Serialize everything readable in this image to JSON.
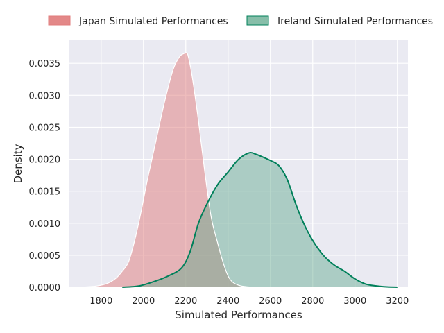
{
  "chart_data": {
    "type": "area",
    "title": "",
    "xlabel": "Simulated Performances",
    "ylabel": "Density",
    "xlim": [
      1650,
      3250
    ],
    "ylim": [
      0,
      0.00386
    ],
    "grid": true,
    "legend_position": "top",
    "x_ticks": [
      1800,
      2000,
      2200,
      2400,
      2600,
      2800,
      3000,
      3200
    ],
    "x_tick_labels": [
      "1800",
      "2000",
      "2200",
      "2400",
      "2600",
      "2800",
      "3000",
      "3200"
    ],
    "y_ticks": [
      0,
      0.0005,
      0.001,
      0.0015,
      0.002,
      0.0025,
      0.003,
      0.0035
    ],
    "y_tick_labels": [
      "0.0000",
      "0.0005",
      "0.0010",
      "0.0015",
      "0.0020",
      "0.0025",
      "0.0030",
      "0.0035"
    ],
    "series": [
      {
        "name": "Japan Simulated Performances",
        "fill_color": "#e07b7b",
        "line_color": "#ffffff",
        "x": [
          1700,
          1780,
          1830,
          1870,
          1900,
          1930,
          1960,
          1990,
          2020,
          2060,
          2100,
          2140,
          2170,
          2190,
          2200,
          2210,
          2230,
          2260,
          2290,
          2320,
          2350,
          2380,
          2410,
          2450,
          2500,
          2550
        ],
        "y": [
          0,
          2e-05,
          6e-05,
          0.00014,
          0.00025,
          0.0004,
          0.00075,
          0.0012,
          0.0017,
          0.0023,
          0.0029,
          0.0034,
          0.0036,
          0.00365,
          0.00366,
          0.00363,
          0.0033,
          0.0026,
          0.0018,
          0.0011,
          0.0007,
          0.00035,
          0.00012,
          3e-05,
          5e-06,
          0
        ]
      },
      {
        "name": "Ireland Simulated Performances",
        "fill_color": "#5fa88c",
        "line_color": "#00805a",
        "x": [
          1900,
          1980,
          2060,
          2120,
          2180,
          2220,
          2260,
          2300,
          2350,
          2400,
          2450,
          2500,
          2530,
          2560,
          2600,
          2640,
          2680,
          2720,
          2760,
          2800,
          2850,
          2900,
          2950,
          3000,
          3050,
          3100,
          3150,
          3200
        ],
        "y": [
          0,
          2e-05,
          0.0001,
          0.00018,
          0.0003,
          0.00055,
          0.001,
          0.0013,
          0.0016,
          0.0018,
          0.002,
          0.0021,
          0.00208,
          0.00204,
          0.00198,
          0.0019,
          0.00168,
          0.0013,
          0.00098,
          0.00073,
          0.0005,
          0.00035,
          0.00025,
          0.00013,
          5e-05,
          2e-05,
          5e-06,
          0
        ]
      }
    ]
  }
}
